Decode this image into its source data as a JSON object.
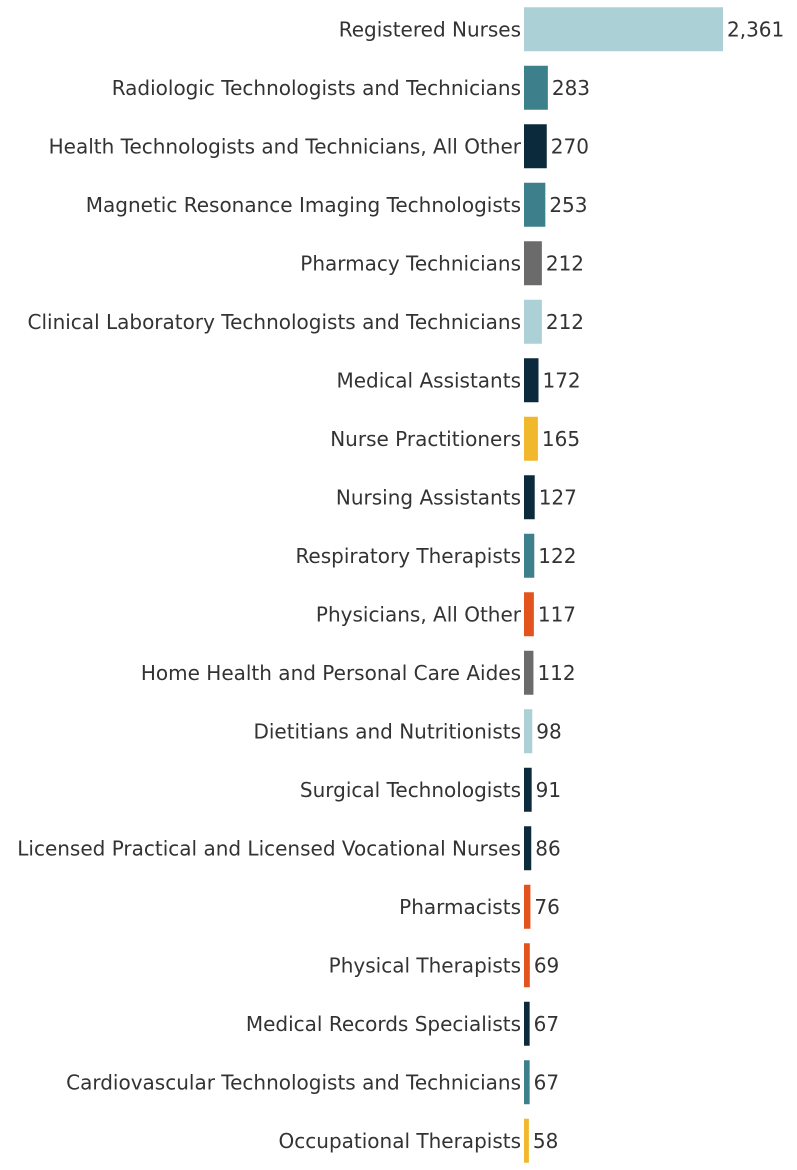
{
  "chart_data": {
    "type": "bar",
    "orientation": "horizontal",
    "title": "",
    "xlabel": "",
    "ylabel": "",
    "grid": false,
    "xlim": [
      0,
      2361
    ],
    "categories": [
      "Registered Nurses",
      "Radiologic Technologists and Technicians",
      "Health Technologists and Technicians, All Other",
      "Magnetic Resonance Imaging Technologists",
      "Pharmacy Technicians",
      "Clinical Laboratory Technologists and Technicians",
      "Medical Assistants",
      "Nurse Practitioners",
      "Nursing Assistants",
      "Respiratory Therapists",
      "Physicians, All Other",
      "Home Health and Personal Care Aides",
      "Dietitians and Nutritionists",
      "Surgical Technologists",
      "Licensed Practical and Licensed Vocational Nurses",
      "Pharmacists",
      "Physical Therapists",
      "Medical Records Specialists",
      "Cardiovascular Technologists and Technicians",
      "Occupational Therapists"
    ],
    "values": [
      2361,
      283,
      270,
      253,
      212,
      212,
      172,
      165,
      127,
      122,
      117,
      112,
      98,
      91,
      86,
      76,
      69,
      67,
      67,
      58
    ],
    "value_labels": [
      "2,361",
      "283",
      "270",
      "253",
      "212",
      "212",
      "172",
      "165",
      "127",
      "122",
      "117",
      "112",
      "98",
      "91",
      "86",
      "76",
      "69",
      "67",
      "67",
      "58"
    ],
    "colors": [
      "#abd1d6",
      "#3e7f8c",
      "#0b2a3b",
      "#3e7f8c",
      "#6b6b6b",
      "#abd1d6",
      "#0b2a3b",
      "#f1b82d",
      "#0b2a3b",
      "#3e7f8c",
      "#e3531e",
      "#6b6b6b",
      "#abd1d6",
      "#0b2a3b",
      "#0b2a3b",
      "#e3531e",
      "#e3531e",
      "#0b2a3b",
      "#3e7f8c",
      "#f1b82d"
    ]
  }
}
